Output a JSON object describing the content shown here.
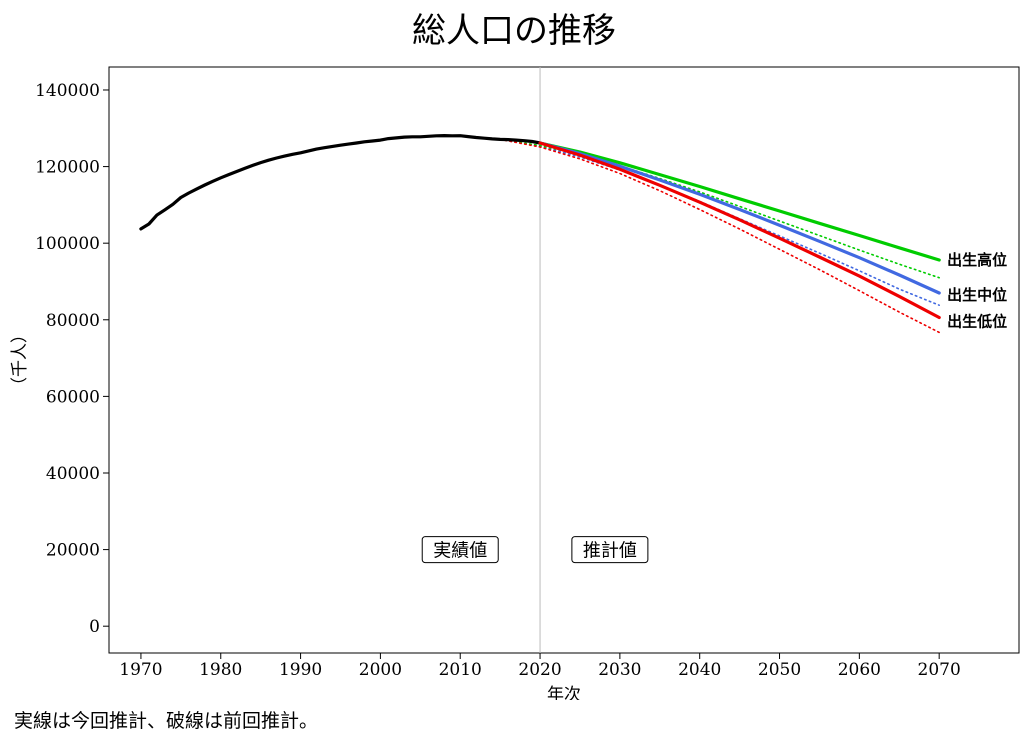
{
  "chart_data": {
    "type": "line",
    "title": "総人口の推移",
    "xlabel": "年次",
    "ylabel": "（千人）",
    "xlim": [
      1966,
      2080
    ],
    "ylim": [
      -7000,
      146000
    ],
    "x_ticks": [
      1970,
      1980,
      1990,
      2000,
      2010,
      2020,
      2030,
      2040,
      2050,
      2060,
      2070
    ],
    "y_ticks": [
      0,
      20000,
      40000,
      60000,
      80000,
      100000,
      120000,
      140000
    ],
    "vline_x": 2020,
    "grid": false,
    "region_labels": [
      {
        "text": "実績値",
        "x": 2010,
        "y": 20000
      },
      {
        "text": "推計値",
        "x": 2030,
        "y": 20000
      }
    ],
    "series": [
      {
        "name": "",
        "color": "#000000",
        "style": "solid",
        "points": [
          [
            1970,
            103720
          ],
          [
            1971,
            105014
          ],
          [
            1972,
            107332
          ],
          [
            1973,
            108710
          ],
          [
            1974,
            110162
          ],
          [
            1975,
            111940
          ],
          [
            1976,
            113094
          ],
          [
            1977,
            114165
          ],
          [
            1978,
            115190
          ],
          [
            1979,
            116155
          ],
          [
            1980,
            117060
          ],
          [
            1981,
            117902
          ],
          [
            1982,
            118728
          ],
          [
            1983,
            119536
          ],
          [
            1984,
            120305
          ],
          [
            1985,
            121049
          ],
          [
            1986,
            121660
          ],
          [
            1987,
            122239
          ],
          [
            1988,
            122745
          ],
          [
            1989,
            123205
          ],
          [
            1990,
            123611
          ],
          [
            1991,
            124101
          ],
          [
            1992,
            124567
          ],
          [
            1993,
            124938
          ],
          [
            1994,
            125265
          ],
          [
            1995,
            125570
          ],
          [
            1996,
            125859
          ],
          [
            1997,
            126157
          ],
          [
            1998,
            126472
          ],
          [
            1999,
            126667
          ],
          [
            2000,
            126926
          ],
          [
            2001,
            127316
          ],
          [
            2002,
            127486
          ],
          [
            2003,
            127694
          ],
          [
            2004,
            127787
          ],
          [
            2005,
            127768
          ],
          [
            2006,
            127901
          ],
          [
            2007,
            128033
          ],
          [
            2008,
            128084
          ],
          [
            2009,
            128032
          ],
          [
            2010,
            128057
          ],
          [
            2011,
            127834
          ],
          [
            2012,
            127593
          ],
          [
            2013,
            127414
          ],
          [
            2014,
            127237
          ],
          [
            2015,
            127095
          ],
          [
            2016,
            127042
          ],
          [
            2017,
            126919
          ],
          [
            2018,
            126749
          ],
          [
            2019,
            126555
          ],
          [
            2020,
            126146
          ]
        ]
      },
      {
        "name": "出生高位",
        "color": "#00cc00",
        "style": "solid",
        "points": [
          [
            2020,
            126146
          ],
          [
            2025,
            123800
          ],
          [
            2030,
            121000
          ],
          [
            2035,
            117900
          ],
          [
            2040,
            114800
          ],
          [
            2045,
            111600
          ],
          [
            2050,
            108400
          ],
          [
            2055,
            105200
          ],
          [
            2060,
            102000
          ],
          [
            2065,
            98800
          ],
          [
            2070,
            95600
          ]
        ]
      },
      {
        "name": "出生中位",
        "color": "#4169e1",
        "style": "solid",
        "points": [
          [
            2020,
            126146
          ],
          [
            2025,
            123400
          ],
          [
            2030,
            120100
          ],
          [
            2035,
            116500
          ],
          [
            2040,
            112800
          ],
          [
            2045,
            108800
          ],
          [
            2050,
            104700
          ],
          [
            2055,
            100500
          ],
          [
            2060,
            96200
          ],
          [
            2065,
            91700
          ],
          [
            2070,
            87000
          ]
        ]
      },
      {
        "name": "出生低位",
        "color": "#ee0000",
        "style": "solid",
        "points": [
          [
            2020,
            126146
          ],
          [
            2025,
            123000
          ],
          [
            2030,
            119300
          ],
          [
            2035,
            115100
          ],
          [
            2040,
            110700
          ],
          [
            2045,
            106100
          ],
          [
            2050,
            101300
          ],
          [
            2055,
            96400
          ],
          [
            2060,
            91400
          ],
          [
            2065,
            86100
          ],
          [
            2070,
            80600
          ]
        ]
      },
      {
        "name": "",
        "color": "#4169e1",
        "style": "dotted",
        "points": [
          [
            2015,
            127095
          ],
          [
            2020,
            125300
          ],
          [
            2025,
            122500
          ],
          [
            2030,
            119100
          ],
          [
            2035,
            115200
          ],
          [
            2040,
            110900
          ],
          [
            2045,
            106400
          ],
          [
            2050,
            101900
          ],
          [
            2055,
            97400
          ],
          [
            2060,
            92800
          ],
          [
            2065,
            88000
          ],
          [
            2070,
            83800
          ]
        ]
      },
      {
        "name": "",
        "color": "#00cc00",
        "style": "dotted",
        "points": [
          [
            2015,
            127095
          ],
          [
            2020,
            125500
          ],
          [
            2025,
            123100
          ],
          [
            2030,
            120200
          ],
          [
            2035,
            116900
          ],
          [
            2040,
            113400
          ],
          [
            2045,
            109600
          ],
          [
            2050,
            105800
          ],
          [
            2055,
            102000
          ],
          [
            2060,
            98200
          ],
          [
            2065,
            94500
          ],
          [
            2070,
            91000
          ]
        ]
      },
      {
        "name": "",
        "color": "#ee0000",
        "style": "dotted",
        "points": [
          [
            2015,
            127095
          ],
          [
            2020,
            125100
          ],
          [
            2025,
            122000
          ],
          [
            2030,
            118200
          ],
          [
            2035,
            113700
          ],
          [
            2040,
            108800
          ],
          [
            2045,
            103700
          ],
          [
            2050,
            98400
          ],
          [
            2055,
            93100
          ],
          [
            2060,
            87600
          ],
          [
            2065,
            82000
          ],
          [
            2070,
            76700
          ]
        ]
      }
    ]
  },
  "caption": "実線は今回推計、破線は前回推計。"
}
